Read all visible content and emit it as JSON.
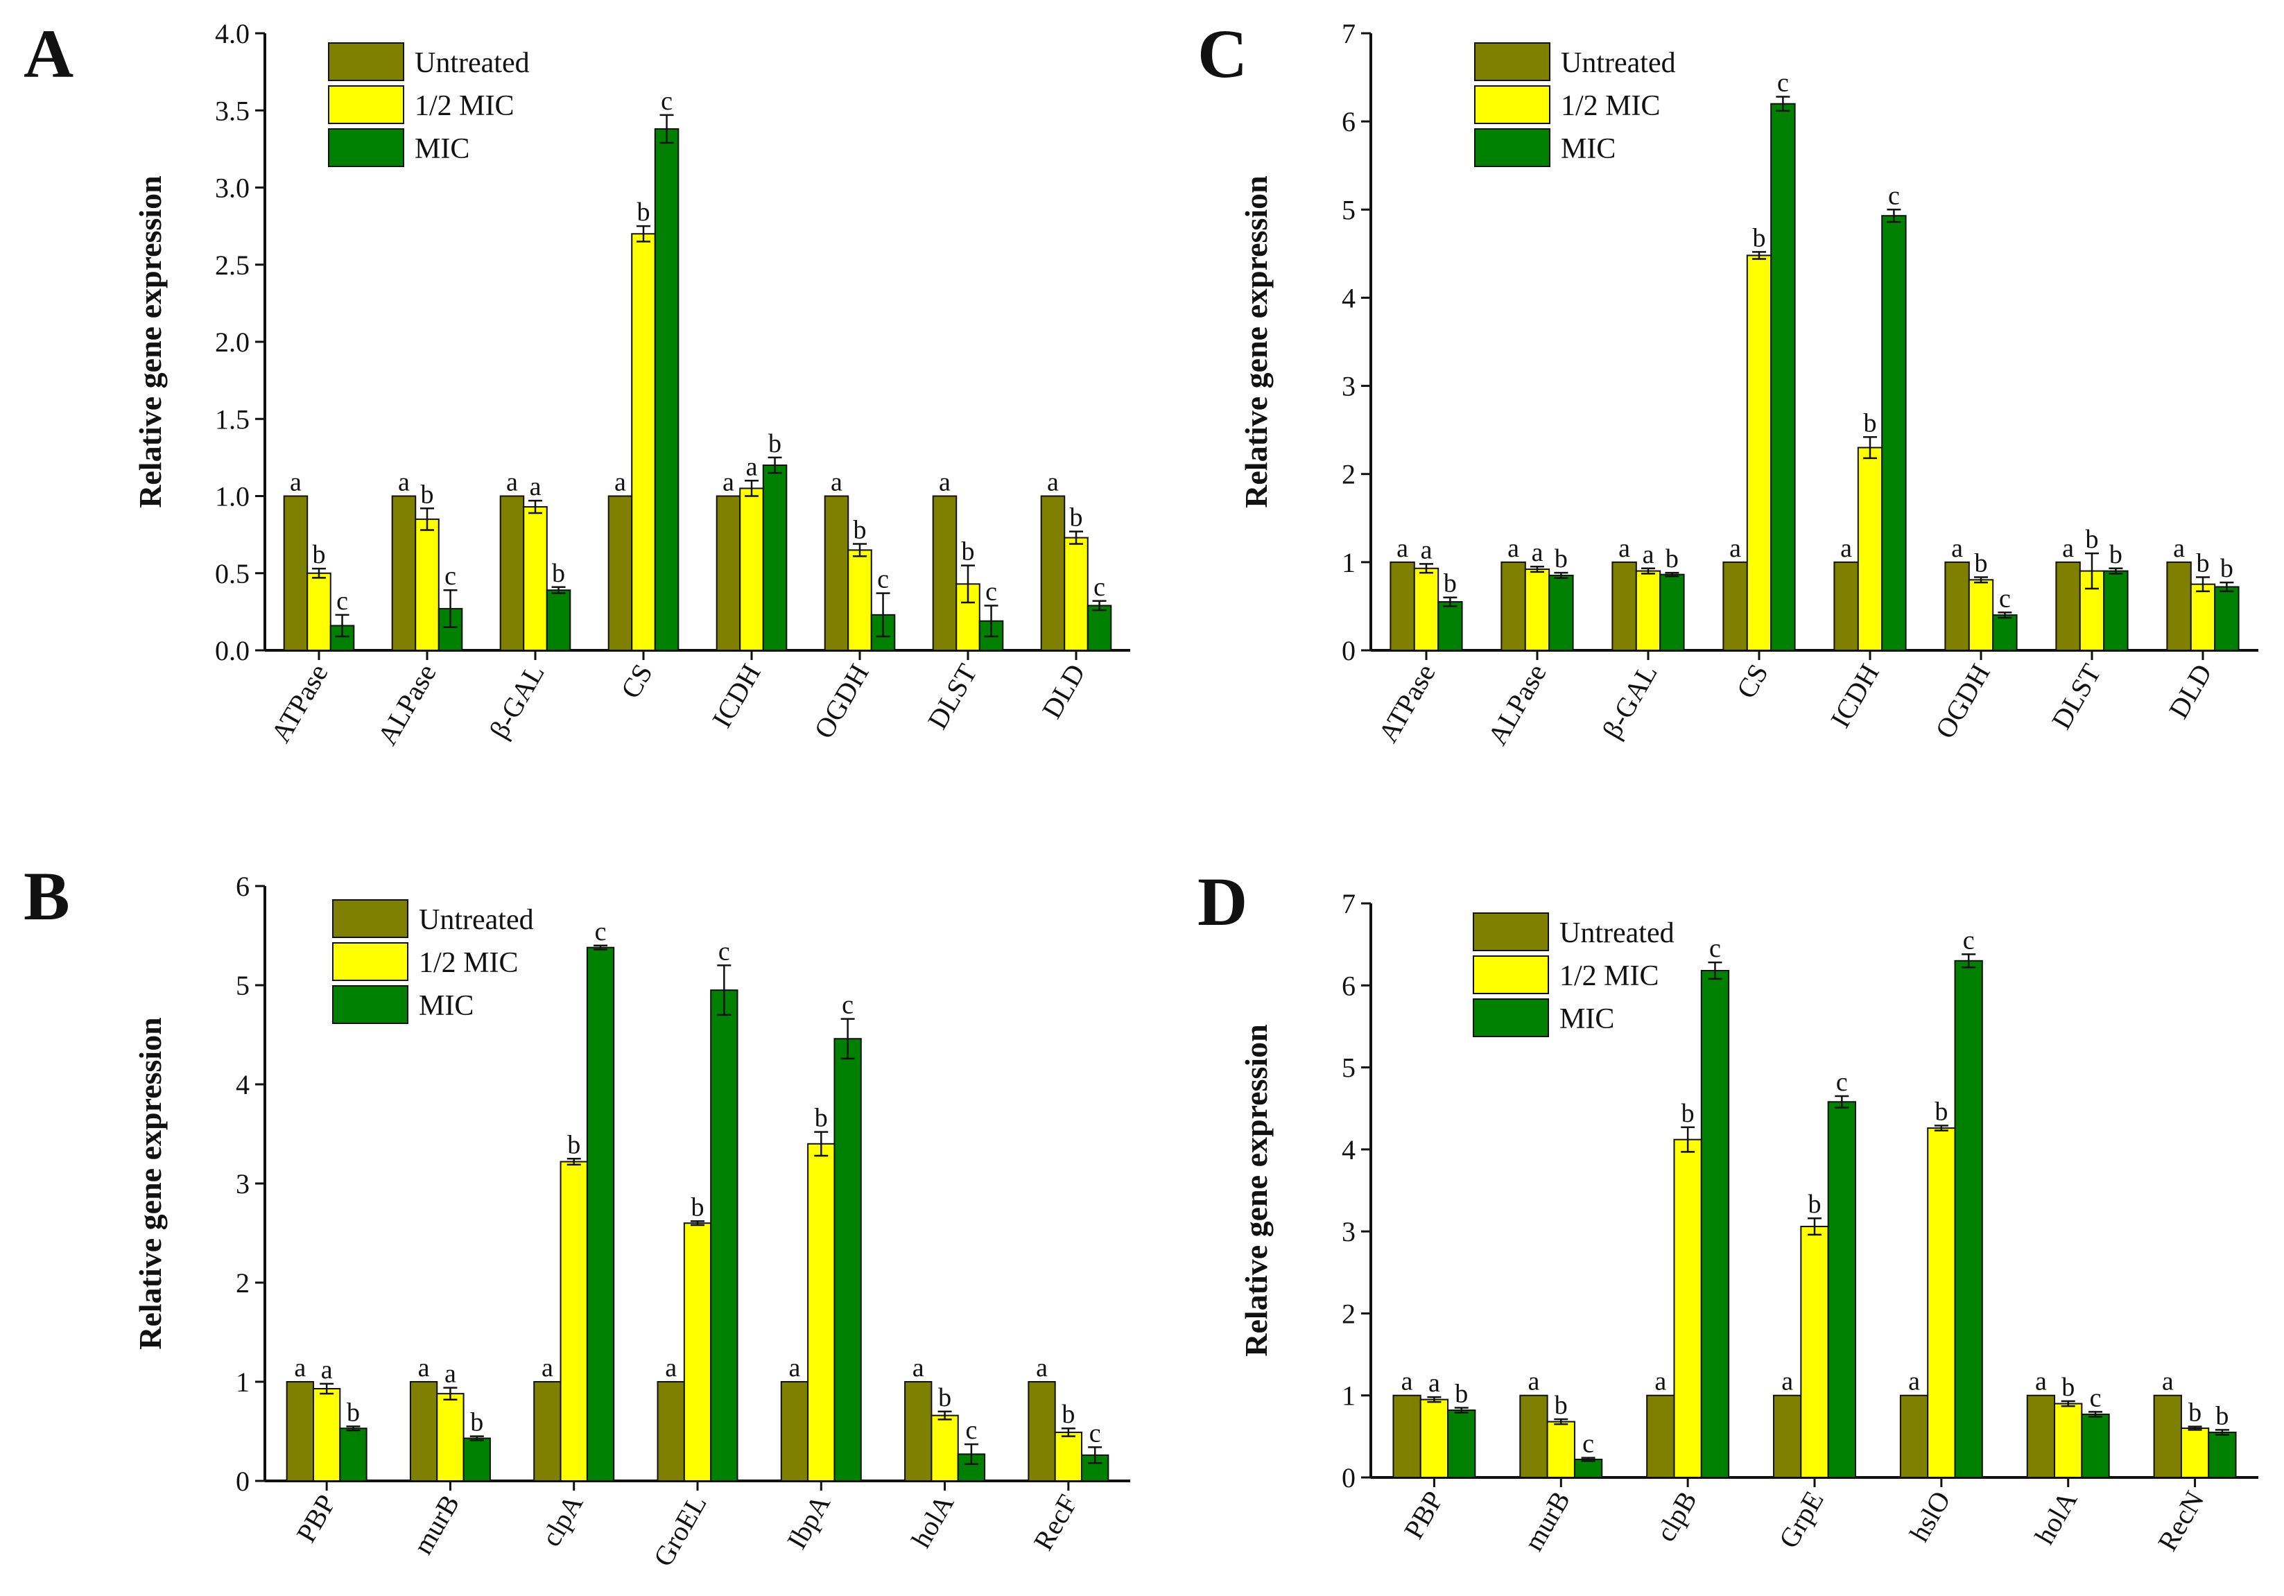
{
  "colors": {
    "Untreated": "#808000",
    "1/2 MIC": "#ffff00",
    "MIC": "#008000",
    "axis": "#111111"
  },
  "panel_labels": [
    "A",
    "B",
    "C",
    "D"
  ],
  "chart_data": [
    {
      "panel": "A",
      "type": "bar",
      "ylabel": "Relative gene expression",
      "xlabel": "",
      "ylim": [
        0,
        4.0
      ],
      "yticks": [
        0.0,
        0.5,
        1.0,
        1.5,
        2.0,
        2.5,
        3.0,
        3.5,
        4.0
      ],
      "ytick_labels": [
        "0.0",
        "0.5",
        "1.0",
        "1.5",
        "2.0",
        "2.5",
        "3.0",
        "3.5",
        "4.0"
      ],
      "legend": [
        "Untreated",
        "1/2 MIC",
        "MIC"
      ],
      "legend_position": "top-left",
      "categories": [
        "ATPase",
        "ALPase",
        "β-GAL",
        "CS",
        "ICDH",
        "OGDH",
        "DLST",
        "DLD"
      ],
      "series": [
        {
          "name": "Untreated",
          "values": [
            1.0,
            1.0,
            1.0,
            1.0,
            1.0,
            1.0,
            1.0,
            1.0
          ],
          "errors": [
            0,
            0,
            0,
            0,
            0,
            0,
            0,
            0
          ],
          "letters": [
            "a",
            "a",
            "a",
            "a",
            "a",
            "a",
            "a",
            "a"
          ]
        },
        {
          "name": "1/2 MIC",
          "values": [
            0.5,
            0.85,
            0.93,
            2.7,
            1.05,
            0.65,
            0.43,
            0.73
          ],
          "errors": [
            0.03,
            0.07,
            0.04,
            0.05,
            0.05,
            0.04,
            0.12,
            0.04
          ],
          "letters": [
            "b",
            "b",
            "a",
            "b",
            "a",
            "b",
            "b",
            "b"
          ]
        },
        {
          "name": "MIC",
          "values": [
            0.16,
            0.27,
            0.39,
            3.38,
            1.2,
            0.23,
            0.19,
            0.29
          ],
          "errors": [
            0.07,
            0.12,
            0.02,
            0.09,
            0.05,
            0.14,
            0.1,
            0.03
          ],
          "letters": [
            "c",
            "c",
            "b",
            "c",
            "b",
            "c",
            "c",
            "c"
          ]
        }
      ]
    },
    {
      "panel": "B",
      "type": "bar",
      "ylabel": "Relative gene expression",
      "xlabel": "",
      "ylim": [
        0,
        6
      ],
      "yticks": [
        0,
        1,
        2,
        3,
        4,
        5,
        6
      ],
      "ytick_labels": [
        "0",
        "1",
        "2",
        "3",
        "4",
        "5",
        "6"
      ],
      "legend": [
        "Untreated",
        "1/2 MIC",
        "MIC"
      ],
      "legend_position": "top-left",
      "categories": [
        "PBP",
        "murB",
        "clpA",
        "GroEL",
        "IbpA",
        "holA",
        "RecF"
      ],
      "series": [
        {
          "name": "Untreated",
          "values": [
            1.0,
            1.0,
            1.0,
            1.0,
            1.0,
            1.0,
            1.0
          ],
          "errors": [
            0,
            0,
            0,
            0,
            0,
            0,
            0
          ],
          "letters": [
            "a",
            "a",
            "a",
            "a",
            "a",
            "a",
            "a"
          ]
        },
        {
          "name": "1/2 MIC",
          "values": [
            0.93,
            0.88,
            3.22,
            2.6,
            3.4,
            0.66,
            0.49
          ],
          "errors": [
            0.05,
            0.06,
            0.03,
            0.02,
            0.12,
            0.04,
            0.04
          ],
          "letters": [
            "a",
            "a",
            "b",
            "b",
            "b",
            "b",
            "b"
          ]
        },
        {
          "name": "MIC",
          "values": [
            0.53,
            0.43,
            5.38,
            4.95,
            4.46,
            0.27,
            0.26
          ],
          "errors": [
            0.02,
            0.02,
            0.02,
            0.25,
            0.2,
            0.1,
            0.08
          ],
          "letters": [
            "b",
            "b",
            "c",
            "c",
            "c",
            "c",
            "c"
          ]
        }
      ]
    },
    {
      "panel": "C",
      "type": "bar",
      "ylabel": "Relative gene expression",
      "xlabel": "",
      "ylim": [
        0,
        7
      ],
      "yticks": [
        0,
        1,
        2,
        3,
        4,
        5,
        6,
        7
      ],
      "ytick_labels": [
        "0",
        "1",
        "2",
        "3",
        "4",
        "5",
        "6",
        "7"
      ],
      "legend": [
        "Untreated",
        "1/2 MIC",
        "MIC"
      ],
      "legend_position": "top-left",
      "categories": [
        "ATPase",
        "ALPase",
        "β-GAL",
        "CS",
        "ICDH",
        "OGDH",
        "DLST",
        "DLD"
      ],
      "series": [
        {
          "name": "Untreated",
          "values": [
            1.0,
            1.0,
            1.0,
            1.0,
            1.0,
            1.0,
            1.0,
            1.0
          ],
          "errors": [
            0,
            0,
            0,
            0,
            0,
            0,
            0,
            0
          ],
          "letters": [
            "a",
            "a",
            "a",
            "a",
            "a",
            "a",
            "a",
            "a"
          ]
        },
        {
          "name": "1/2 MIC",
          "values": [
            0.93,
            0.92,
            0.9,
            4.48,
            2.3,
            0.8,
            0.9,
            0.75
          ],
          "errors": [
            0.05,
            0.03,
            0.03,
            0.04,
            0.12,
            0.03,
            0.2,
            0.08
          ],
          "letters": [
            "a",
            "a",
            "a",
            "b",
            "b",
            "b",
            "b",
            "b"
          ]
        },
        {
          "name": "MIC",
          "values": [
            0.55,
            0.85,
            0.86,
            6.2,
            4.93,
            0.4,
            0.9,
            0.72
          ],
          "errors": [
            0.05,
            0.03,
            0.02,
            0.08,
            0.07,
            0.03,
            0.03,
            0.05
          ],
          "letters": [
            "b",
            "b",
            "b",
            "c",
            "c",
            "c",
            "b",
            "b"
          ]
        }
      ]
    },
    {
      "panel": "D",
      "type": "bar",
      "ylabel": "Relative gene expression",
      "xlabel": "",
      "ylim": [
        0,
        7
      ],
      "yticks": [
        0,
        1,
        2,
        3,
        4,
        5,
        6,
        7
      ],
      "ytick_labels": [
        "0",
        "1",
        "2",
        "3",
        "4",
        "5",
        "6",
        "7"
      ],
      "legend": [
        "Untreated",
        "1/2 MIC",
        "MIC"
      ],
      "legend_position": "top-left",
      "categories": [
        "PBP",
        "murB",
        "clpB",
        "GrpE",
        "hslO",
        "holA",
        "RecN"
      ],
      "series": [
        {
          "name": "Untreated",
          "values": [
            1.0,
            1.0,
            1.0,
            1.0,
            1.0,
            1.0,
            1.0
          ],
          "errors": [
            0,
            0,
            0,
            0,
            0,
            0,
            0
          ],
          "letters": [
            "a",
            "a",
            "a",
            "a",
            "a",
            "a",
            "a"
          ]
        },
        {
          "name": "1/2 MIC",
          "values": [
            0.95,
            0.68,
            4.12,
            3.06,
            4.26,
            0.9,
            0.6
          ],
          "errors": [
            0.03,
            0.03,
            0.15,
            0.1,
            0.03,
            0.03,
            0.02
          ],
          "letters": [
            "a",
            "b",
            "b",
            "b",
            "b",
            "b",
            "b"
          ]
        },
        {
          "name": "MIC",
          "values": [
            0.82,
            0.22,
            6.18,
            4.58,
            6.3,
            0.77,
            0.55
          ],
          "errors": [
            0.03,
            0.02,
            0.1,
            0.07,
            0.08,
            0.03,
            0.03
          ],
          "letters": [
            "b",
            "c",
            "c",
            "c",
            "c",
            "c",
            "b"
          ]
        }
      ]
    }
  ]
}
